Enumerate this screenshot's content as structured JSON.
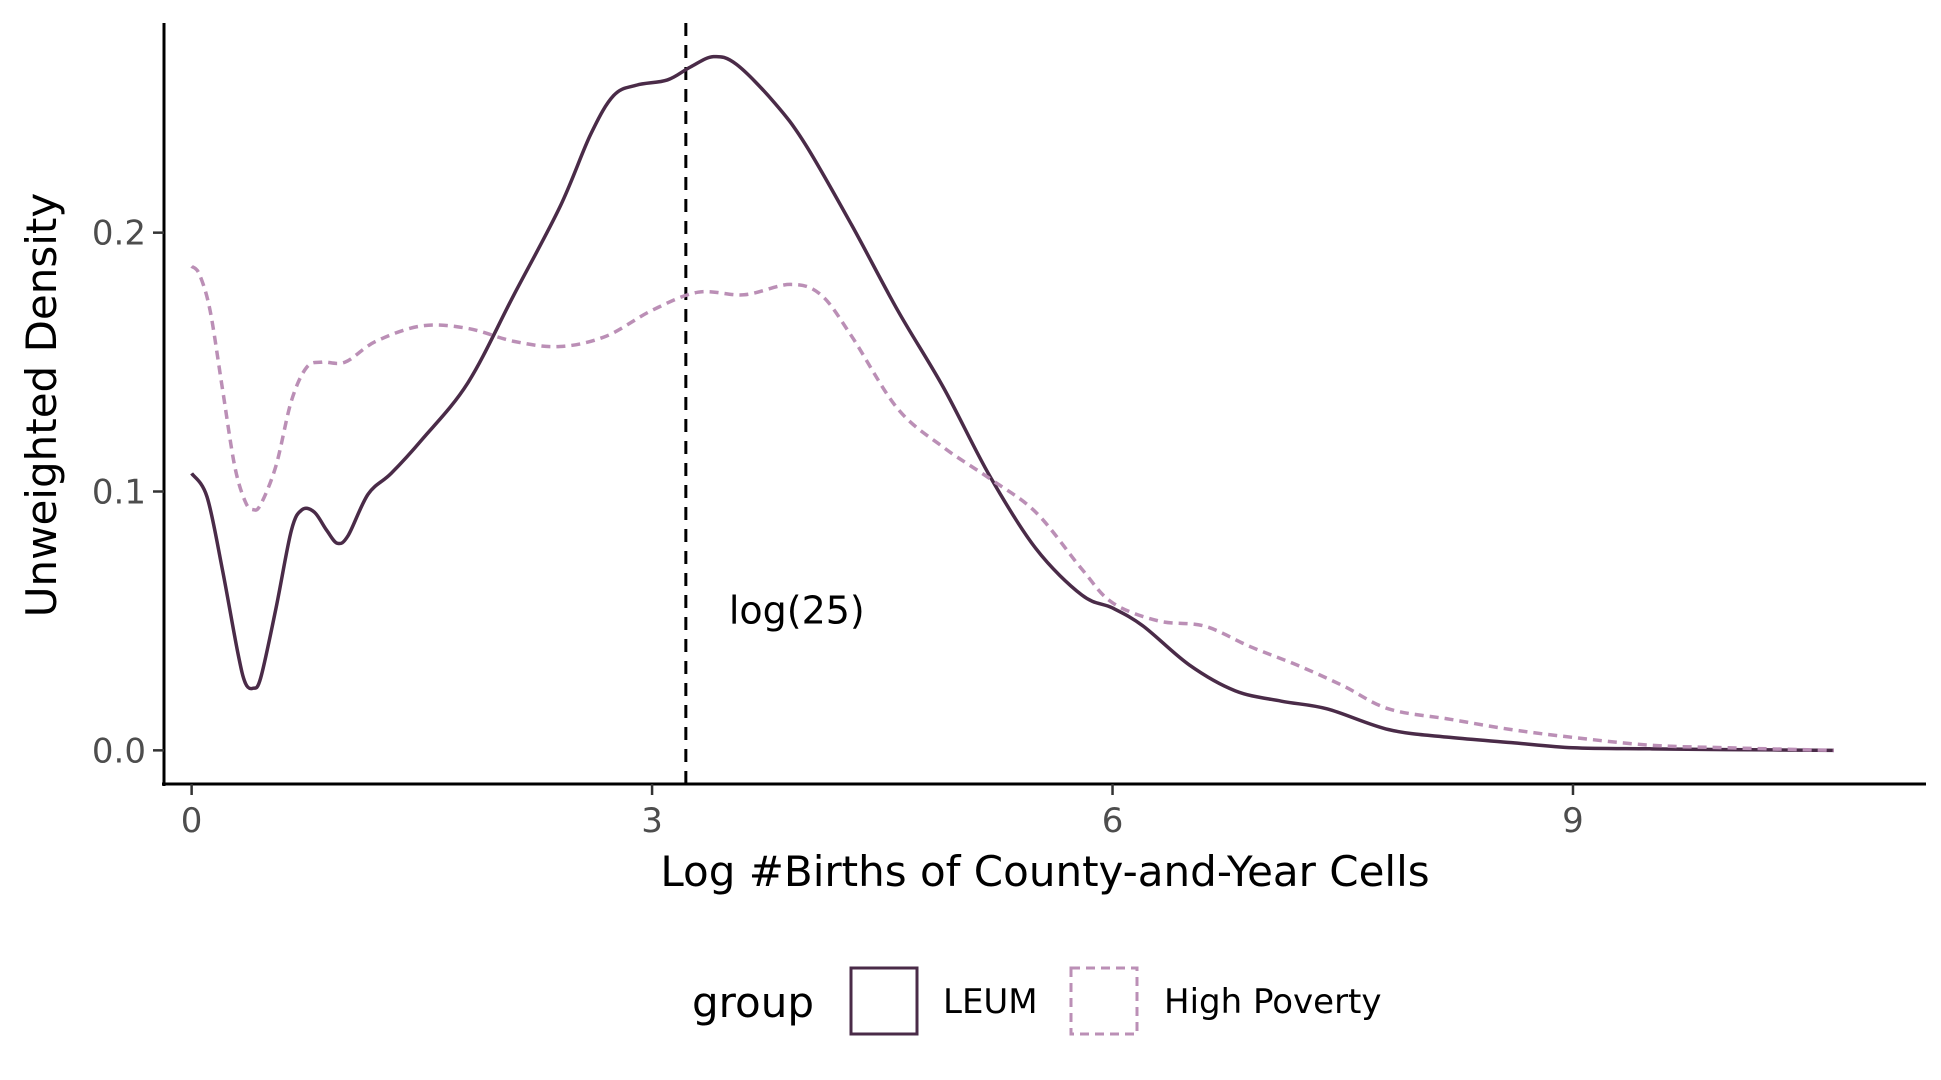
{
  "chart_data": {
    "type": "line",
    "title": "",
    "xlabel": "Log #Births of County-and-Year Cells",
    "ylabel": "Unweighted Density",
    "xlim": [
      -0.18,
      11.3
    ],
    "ylim": [
      -0.013,
      0.281
    ],
    "x_ticks": [
      0,
      3,
      6,
      9
    ],
    "x_tick_labels": [
      "0",
      "3",
      "6",
      "9"
    ],
    "y_ticks": [
      0.0,
      0.1,
      0.2
    ],
    "y_tick_labels": [
      "0.0",
      "0.1",
      "0.2"
    ],
    "grid": false,
    "legend": {
      "title": "group",
      "position": "bottom"
    },
    "reference_line": {
      "x": 3.22,
      "style": "dashed",
      "color": "#000000",
      "label": "log(25)",
      "label_x": 3.5,
      "label_y": 0.049
    },
    "series": [
      {
        "name": "LEUM",
        "color": "#4a2b48",
        "style": "solid",
        "points": [
          [
            0.0,
            0.107
          ],
          [
            0.1,
            0.098
          ],
          [
            0.2,
            0.07
          ],
          [
            0.3,
            0.038
          ],
          [
            0.35,
            0.026
          ],
          [
            0.4,
            0.024
          ],
          [
            0.45,
            0.028
          ],
          [
            0.55,
            0.055
          ],
          [
            0.65,
            0.085
          ],
          [
            0.72,
            0.093
          ],
          [
            0.8,
            0.092
          ],
          [
            0.88,
            0.085
          ],
          [
            0.95,
            0.08
          ],
          [
            1.02,
            0.083
          ],
          [
            1.15,
            0.099
          ],
          [
            1.3,
            0.107
          ],
          [
            1.5,
            0.12
          ],
          [
            1.8,
            0.142
          ],
          [
            2.1,
            0.176
          ],
          [
            2.4,
            0.21
          ],
          [
            2.6,
            0.238
          ],
          [
            2.75,
            0.253
          ],
          [
            2.9,
            0.257
          ],
          [
            3.1,
            0.259
          ],
          [
            3.25,
            0.264
          ],
          [
            3.4,
            0.268
          ],
          [
            3.55,
            0.265
          ],
          [
            3.8,
            0.25
          ],
          [
            4.0,
            0.234
          ],
          [
            4.3,
            0.203
          ],
          [
            4.6,
            0.17
          ],
          [
            4.9,
            0.14
          ],
          [
            5.2,
            0.106
          ],
          [
            5.5,
            0.078
          ],
          [
            5.8,
            0.06
          ],
          [
            6.0,
            0.055
          ],
          [
            6.2,
            0.048
          ],
          [
            6.5,
            0.033
          ],
          [
            6.8,
            0.023
          ],
          [
            7.1,
            0.019
          ],
          [
            7.4,
            0.016
          ],
          [
            7.8,
            0.008
          ],
          [
            8.2,
            0.005
          ],
          [
            8.6,
            0.003
          ],
          [
            9.0,
            0.001
          ],
          [
            9.5,
            0.0006
          ],
          [
            10.0,
            0.0003
          ],
          [
            10.7,
            0.0
          ]
        ]
      },
      {
        "name": "High Poverty",
        "color": "#bb8fb6",
        "style": "dashed",
        "points": [
          [
            0.0,
            0.187
          ],
          [
            0.05,
            0.184
          ],
          [
            0.12,
            0.17
          ],
          [
            0.2,
            0.14
          ],
          [
            0.28,
            0.11
          ],
          [
            0.35,
            0.096
          ],
          [
            0.4,
            0.093
          ],
          [
            0.45,
            0.095
          ],
          [
            0.55,
            0.11
          ],
          [
            0.65,
            0.135
          ],
          [
            0.75,
            0.148
          ],
          [
            0.85,
            0.15
          ],
          [
            1.0,
            0.15
          ],
          [
            1.2,
            0.158
          ],
          [
            1.5,
            0.164
          ],
          [
            1.8,
            0.163
          ],
          [
            2.1,
            0.158
          ],
          [
            2.4,
            0.156
          ],
          [
            2.7,
            0.16
          ],
          [
            3.0,
            0.17
          ],
          [
            3.3,
            0.177
          ],
          [
            3.6,
            0.176
          ],
          [
            3.9,
            0.18
          ],
          [
            4.1,
            0.176
          ],
          [
            4.3,
            0.16
          ],
          [
            4.6,
            0.132
          ],
          [
            4.9,
            0.117
          ],
          [
            5.2,
            0.105
          ],
          [
            5.5,
            0.092
          ],
          [
            5.8,
            0.07
          ],
          [
            6.0,
            0.057
          ],
          [
            6.3,
            0.05
          ],
          [
            6.6,
            0.048
          ],
          [
            6.9,
            0.04
          ],
          [
            7.2,
            0.033
          ],
          [
            7.5,
            0.025
          ],
          [
            7.8,
            0.016
          ],
          [
            8.2,
            0.012
          ],
          [
            8.6,
            0.008
          ],
          [
            9.0,
            0.005
          ],
          [
            9.5,
            0.002
          ],
          [
            10.0,
            0.001
          ],
          [
            10.7,
            0.0
          ]
        ]
      }
    ]
  }
}
